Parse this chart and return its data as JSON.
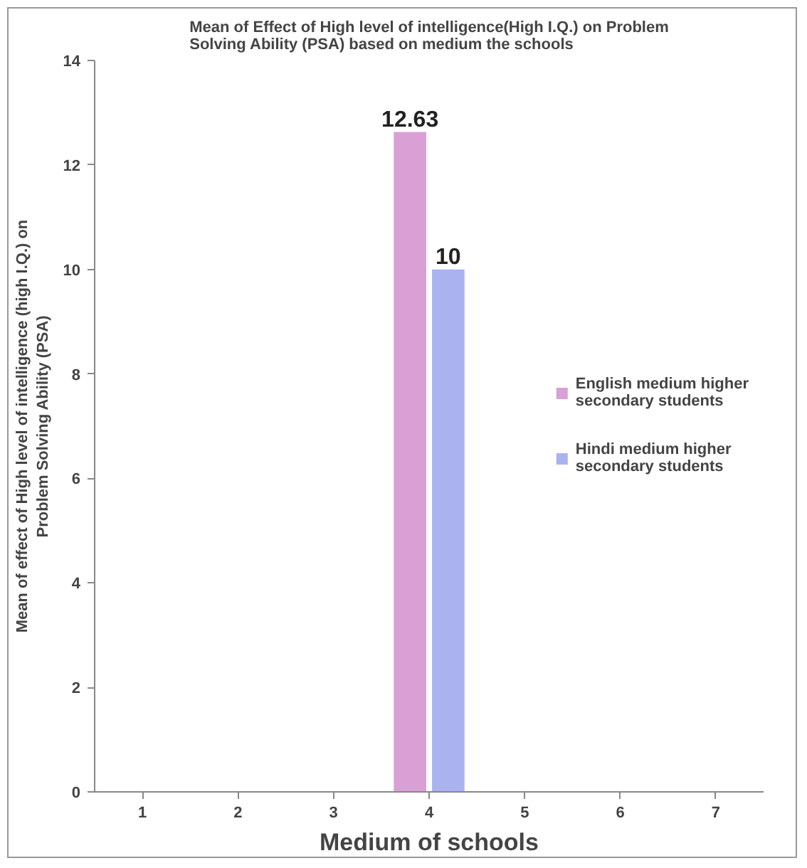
{
  "chart_data": {
    "type": "bar",
    "title": "Mean of Effect of High level of intelligence(High I.Q.) on Problem Solving  Ability (PSA) based on medium the schools",
    "xlabel": "Medium of schools",
    "ylabel": "Mean of effect of High level of intelligence (high I.Q.) on Problem Solving Ability (PSA)",
    "categories": [
      "1",
      "2",
      "3",
      "4",
      "5",
      "6",
      "7"
    ],
    "series": [
      {
        "name": "English medium higher secondary students",
        "color": "#d9a0d6",
        "values": [
          null,
          null,
          null,
          12.63,
          null,
          null,
          null
        ]
      },
      {
        "name": "Hindi medium higher secondary students",
        "color": "#aab3f0",
        "values": [
          null,
          null,
          null,
          10,
          null,
          null,
          null
        ]
      }
    ],
    "ylim": [
      0,
      14
    ],
    "yticks": [
      0,
      2,
      4,
      6,
      8,
      10,
      12,
      14
    ],
    "data_labels": true,
    "legend": "right",
    "grid": false
  }
}
